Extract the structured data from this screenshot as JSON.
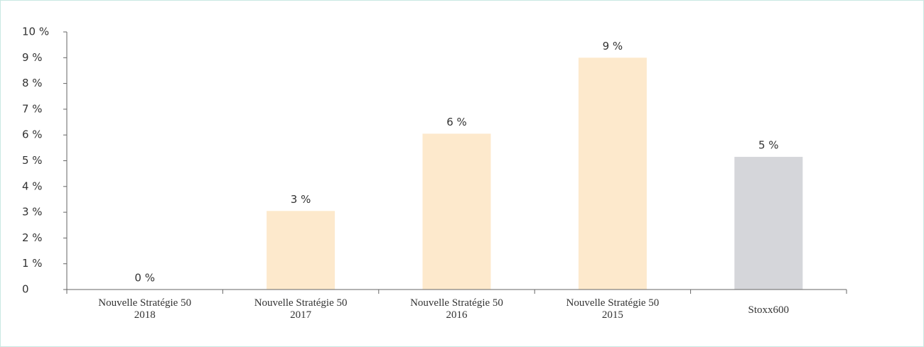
{
  "chart_data": {
    "type": "bar",
    "categories": [
      "Nouvelle Stratégie 50\n2018",
      "Nouvelle Stratégie 50\n2017",
      "Nouvelle Stratégie 50\n2016",
      "Nouvelle Stratégie 50\n2015",
      "Stoxx600"
    ],
    "values": [
      0,
      3.05,
      6.05,
      9.0,
      5.15
    ],
    "value_labels": [
      "0 %",
      "3 %",
      "6 %",
      "9 %",
      "5 %"
    ],
    "colors": [
      "#fde9cc",
      "#fde9cc",
      "#fde9cc",
      "#fde9cc",
      "#d5d6da"
    ],
    "ylim": [
      0,
      10
    ],
    "yticks": [
      0,
      {
        "value": 1,
        "label": "1 %"
      },
      {
        "value": 2,
        "label": "2 %"
      },
      {
        "value": 3,
        "label": "3 %"
      },
      {
        "value": 4,
        "label": "4 %"
      },
      {
        "value": 5,
        "label": "5 %"
      },
      {
        "value": 6,
        "label": "6 %"
      },
      {
        "value": 7,
        "label": "7 %"
      },
      {
        "value": 8,
        "label": "8 %"
      },
      {
        "value": 9,
        "label": "9 %"
      },
      {
        "value": 10,
        "label": "10 %"
      }
    ]
  }
}
